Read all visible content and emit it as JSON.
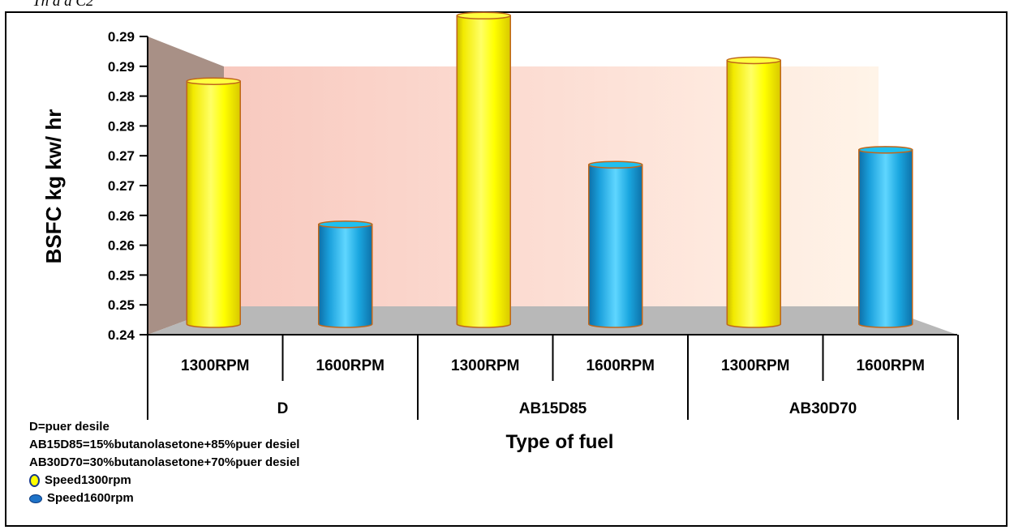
{
  "caption_fragment": "Th                                         d        d       C2          ",
  "chart_data": {
    "type": "bar",
    "title": "",
    "ylabel": "BSFC kg kw/ hr",
    "xlabel": "Type of fuel",
    "yticks": [
      "0.24",
      "0.25",
      "0.25",
      "0.26",
      "0.26",
      "0.27",
      "0.27",
      "0.28",
      "0.28",
      "0.29",
      "0.29"
    ],
    "ylim": [
      0.24,
      0.29
    ],
    "groups": [
      "D",
      "AB15D85",
      "AB30D70"
    ],
    "subcategories": [
      "1300RPM",
      "1600RPM"
    ],
    "series": [
      {
        "name": "Speed1300rpm",
        "color": "#ffff00",
        "values": [
          0.2825,
          0.2935,
          0.286
        ]
      },
      {
        "name": "Speed1600rpm",
        "color": "#1aa7e0",
        "values": [
          0.2585,
          0.2685,
          0.271
        ]
      }
    ],
    "grid": false,
    "legend_position": "bottom-left"
  },
  "legend": {
    "notes": [
      "D=puer desile",
      "AB15D85=15%butanolasetone+85%puer desiel",
      "AB30D70=30%butanolasetone+70%puer desiel"
    ],
    "series_labels": [
      "Speed1300rpm",
      "Speed1600rpm"
    ]
  }
}
